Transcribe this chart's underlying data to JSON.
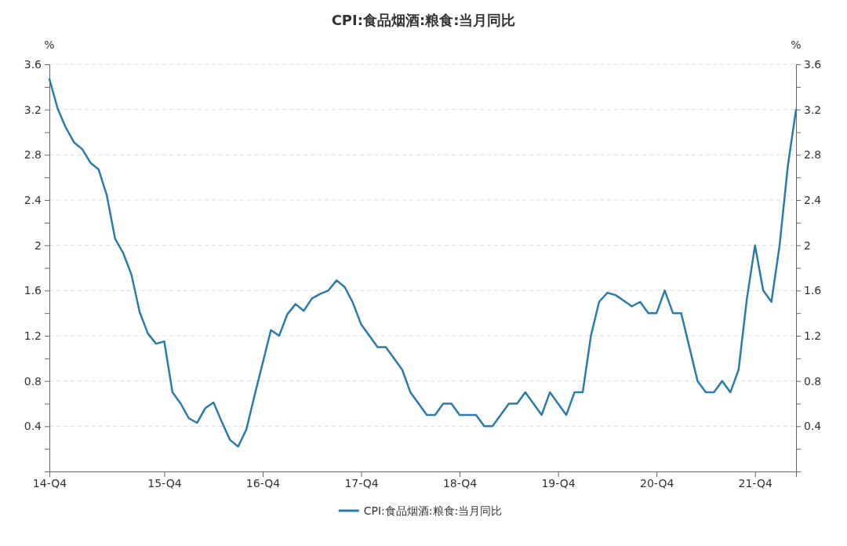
{
  "chart_data": {
    "type": "line",
    "title": "CPI:食品烟酒:粮食:当月同比",
    "ylabel": "%",
    "y2label": "%",
    "categories": [
      "14-Q4",
      null,
      null,
      null,
      null,
      null,
      null,
      null,
      null,
      null,
      null,
      null,
      null,
      null,
      "15-Q4",
      null,
      null,
      null,
      null,
      null,
      null,
      null,
      null,
      null,
      null,
      null,
      "16-Q4",
      null,
      null,
      null,
      null,
      null,
      null,
      null,
      null,
      null,
      null,
      null,
      "17-Q4",
      null,
      null,
      null,
      null,
      null,
      null,
      null,
      null,
      null,
      null,
      null,
      "18-Q4",
      null,
      null,
      null,
      null,
      null,
      null,
      null,
      null,
      null,
      null,
      null,
      "19-Q4",
      null,
      null,
      null,
      null,
      null,
      null,
      null,
      null,
      null,
      null,
      null,
      "20-Q4",
      null,
      null,
      null,
      null,
      null,
      null,
      null,
      null,
      null,
      null,
      null,
      "21-Q4",
      null,
      null,
      null,
      null,
      null
    ],
    "series": [
      {
        "name": "CPI:食品烟酒:粮食:当月同比",
        "color": "#2b7bab",
        "values": [
          3.47,
          3.21,
          3.04,
          2.91,
          2.85,
          2.73,
          2.67,
          2.44,
          2.06,
          1.93,
          1.74,
          1.41,
          1.22,
          1.13,
          1.15,
          0.7,
          0.6,
          0.47,
          0.43,
          0.56,
          0.61,
          0.44,
          0.28,
          0.22,
          0.37,
          0.67,
          0.96,
          1.25,
          1.2,
          1.39,
          1.48,
          1.42,
          1.53,
          1.57,
          1.6,
          1.69,
          1.63,
          1.49,
          1.3,
          1.2,
          1.1,
          1.1,
          1.0,
          0.9,
          0.7,
          0.6,
          0.5,
          0.5,
          0.6,
          0.6,
          0.5,
          0.5,
          0.5,
          0.4,
          0.4,
          0.5,
          0.6,
          0.6,
          0.7,
          0.6,
          0.5,
          0.7,
          0.6,
          0.5,
          0.7,
          0.7,
          1.2,
          1.5,
          1.58,
          1.56,
          1.51,
          1.46,
          1.5,
          1.4,
          1.4,
          1.6,
          1.4,
          1.4,
          1.1,
          0.8,
          0.7,
          0.7,
          0.8,
          0.7,
          0.9,
          1.52,
          2.0,
          1.6,
          1.5,
          2.0,
          2.7,
          3.2
        ]
      }
    ],
    "ylim": [
      0,
      3.6
    ],
    "yticks": [
      {
        "value": 0.2,
        "label": null
      },
      0.4,
      {
        "value": 0.6,
        "label": null
      },
      0.8,
      {
        "value": 1.0,
        "label": null
      },
      1.2,
      {
        "value": 1.4,
        "label": null
      },
      1.6,
      {
        "value": 1.8,
        "label": null
      },
      2,
      {
        "value": 2.2,
        "label": null
      },
      2.4,
      {
        "value": 2.6,
        "label": null
      },
      2.8,
      {
        "value": 3.0,
        "label": null
      },
      3.2,
      {
        "value": 3.4,
        "label": null
      },
      3.6
    ],
    "y2lim": [
      0,
      3.6
    ],
    "y2ticks": [
      {
        "value": 0.2,
        "label": null
      },
      0.4,
      {
        "value": 0.6,
        "label": null
      },
      0.8,
      {
        "value": 1.0,
        "label": null
      },
      1.2,
      {
        "value": 1.4,
        "label": null
      },
      1.6,
      {
        "value": 1.8,
        "label": null
      },
      2,
      {
        "value": 2.2,
        "label": null
      },
      2.4,
      {
        "value": 2.6,
        "label": null
      },
      2.8,
      {
        "value": 3.0,
        "label": null
      },
      3.2,
      {
        "value": 3.4,
        "label": null
      },
      3.6
    ],
    "grid": "y",
    "legend": "bottom",
    "marker": "none",
    "line_style": "solid"
  }
}
